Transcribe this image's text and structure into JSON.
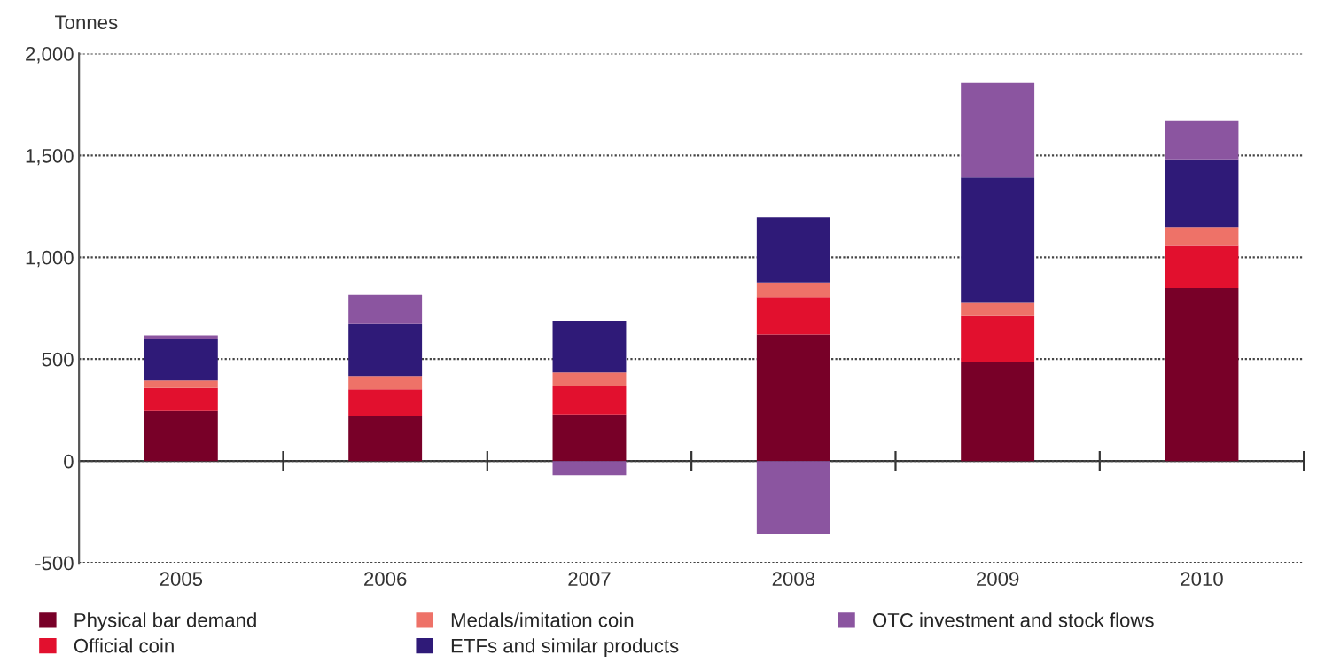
{
  "chart_data": {
    "type": "bar",
    "stacked": true,
    "ylabel": "Tonnes",
    "categories": [
      "2005",
      "2006",
      "2007",
      "2008",
      "2009",
      "2010"
    ],
    "series": [
      {
        "name": "Physical bar demand",
        "color": "#780028",
        "values": [
          245,
          223,
          228,
          621,
          484,
          849
        ]
      },
      {
        "name": "Official coin",
        "color": "#e2102e",
        "values": [
          113,
          129,
          138,
          183,
          231,
          207
        ]
      },
      {
        "name": "Medals/imitation coin",
        "color": "#ee7268",
        "values": [
          37,
          65,
          69,
          72,
          62,
          92
        ]
      },
      {
        "name": "ETFs and similar products",
        "color": "#2f1a78",
        "values": [
          205,
          255,
          253,
          320,
          615,
          333
        ]
      },
      {
        "name": "OTC investment and stock flows",
        "color": "#8b55a0",
        "values": [
          16,
          143,
          -70,
          -360,
          463,
          191
        ]
      }
    ],
    "ylim": [
      -500,
      2000
    ],
    "yticks": [
      {
        "value": -500,
        "label": "-500"
      },
      0,
      500,
      {
        "value": 1000,
        "label": "1,000"
      },
      {
        "value": 1500,
        "label": "1,500"
      },
      {
        "value": 2000,
        "label": "2,000"
      }
    ],
    "grid": "y",
    "legend": "bottom"
  }
}
